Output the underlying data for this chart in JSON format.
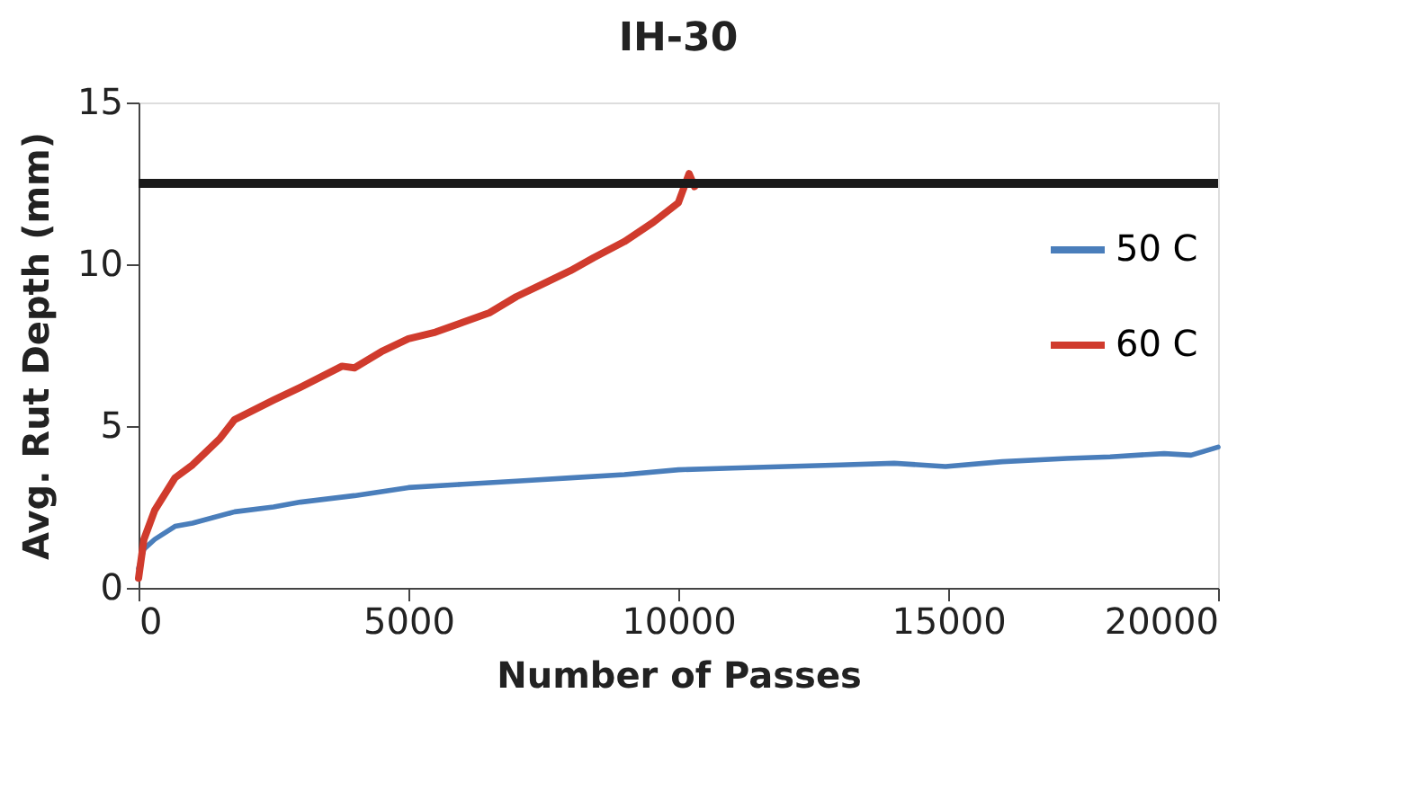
{
  "chart_data": {
    "type": "line",
    "title": "IH-30",
    "xlabel": "Number of Passes",
    "ylabel": "Avg. Rut Depth (mm)",
    "xlim": [
      0,
      20000
    ],
    "xticks": [
      0,
      5000,
      10000,
      15000,
      20000
    ],
    "ylim": [
      0,
      15
    ],
    "yticks": [
      0,
      5,
      10,
      15
    ],
    "grid": false,
    "legend": "top right",
    "marker": "none",
    "line_style": "solid",
    "ref_lines": [
      {
        "axis": "y",
        "value": 12.5,
        "color": "#1a1a1a"
      }
    ],
    "series": [
      {
        "name": "50 C",
        "color": "#4a7ebb",
        "x": [
          0,
          100,
          300,
          675,
          1000,
          1780,
          2500,
          3000,
          4000,
          5000,
          6000,
          7000,
          8000,
          9000,
          10000,
          11000,
          12000,
          13000,
          14000,
          14950,
          16000,
          17200,
          18000,
          19000,
          19500,
          20000
        ],
        "values": [
          0.6,
          1.2,
          1.5,
          1.9,
          2.0,
          2.35,
          2.5,
          2.65,
          2.85,
          3.1,
          3.2,
          3.3,
          3.4,
          3.5,
          3.65,
          3.7,
          3.75,
          3.8,
          3.85,
          3.75,
          3.9,
          4.0,
          4.05,
          4.15,
          4.1,
          4.35
        ]
      },
      {
        "name": "60 C",
        "color": "#d03b2d",
        "x": [
          0,
          100,
          300,
          675,
          1000,
          1500,
          1780,
          2500,
          3000,
          3770,
          4000,
          4500,
          5000,
          5500,
          6000,
          6500,
          7000,
          7500,
          8000,
          8430,
          9000,
          9540,
          10000,
          10200,
          10300
        ],
        "values": [
          0.3,
          1.5,
          2.4,
          3.4,
          3.8,
          4.6,
          5.2,
          5.8,
          6.2,
          6.85,
          6.8,
          7.3,
          7.7,
          7.9,
          8.2,
          8.5,
          9.0,
          9.4,
          9.8,
          10.2,
          10.7,
          11.3,
          11.9,
          12.8,
          12.4
        ]
      }
    ]
  }
}
